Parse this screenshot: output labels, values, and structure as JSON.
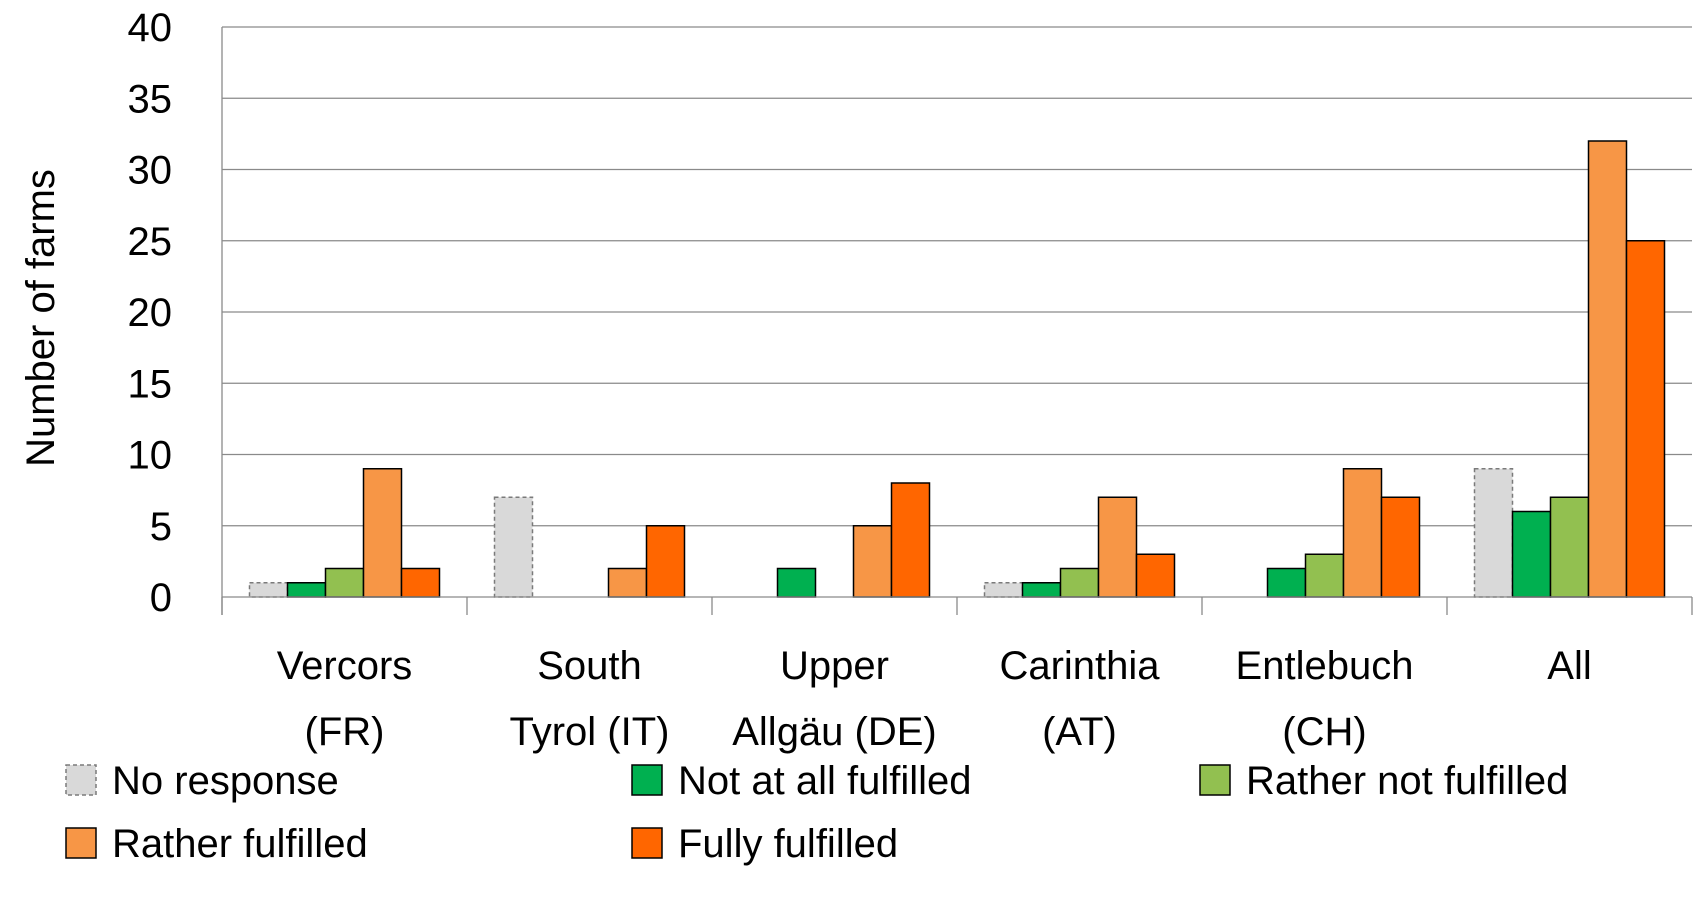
{
  "chart_data": {
    "type": "bar",
    "ylabel": "Number of farms",
    "xlabel": "",
    "ylim": [
      0,
      40
    ],
    "yticks": [
      0,
      5,
      10,
      15,
      20,
      25,
      30,
      35,
      40
    ],
    "grid": true,
    "legend_position": "bottom",
    "categories": [
      [
        "Vercors",
        "(FR)"
      ],
      [
        "South",
        "Tyrol (IT)"
      ],
      [
        "Upper",
        "Allgäu (DE)"
      ],
      [
        "Carinthia",
        "(AT)"
      ],
      [
        "Entlebuch",
        "(CH)"
      ],
      [
        "All"
      ]
    ],
    "series": [
      {
        "name": "No response",
        "color": "#d9d9d9",
        "dashed": true,
        "values": [
          1,
          7,
          0,
          1,
          0,
          9
        ]
      },
      {
        "name": "Not at all fulfilled",
        "color": "#00b050",
        "values": [
          1,
          0,
          2,
          1,
          2,
          6
        ]
      },
      {
        "name": "Rather not fulfilled",
        "color": "#92c050",
        "values": [
          2,
          0,
          0,
          2,
          3,
          7
        ]
      },
      {
        "name": "Rather fulfilled",
        "color": "#f79646",
        "values": [
          9,
          2,
          5,
          7,
          9,
          32
        ]
      },
      {
        "name": "Fully fulfilled",
        "color": "#ff6600",
        "values": [
          2,
          5,
          8,
          3,
          7,
          25
        ]
      }
    ]
  }
}
